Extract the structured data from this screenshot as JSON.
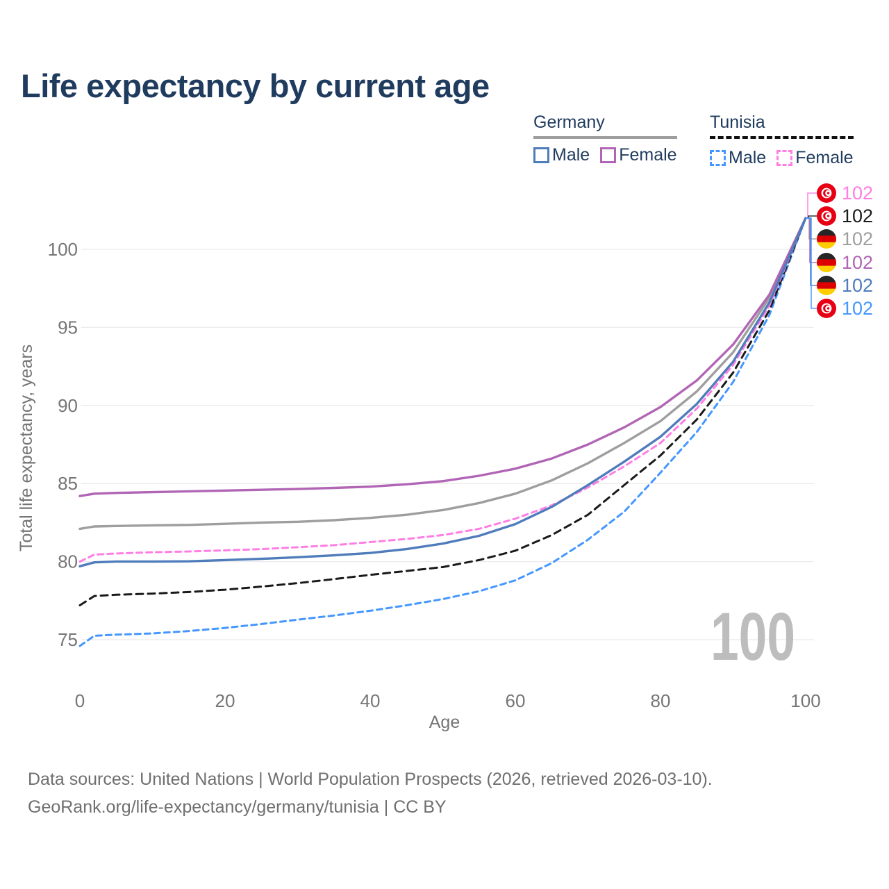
{
  "title": "Life expectancy by current age",
  "watermark_age": "100",
  "legend": {
    "germany": {
      "label": "Germany",
      "male": "Male",
      "female": "Female"
    },
    "tunisia": {
      "label": "Tunisia",
      "male": "Male",
      "female": "Female"
    }
  },
  "footer": {
    "line1": "Data sources: United Nations | World Population Prospects (2026, retrieved 2026-03-10).",
    "line2": "GeoRank.org/life-expectancy/germany/tunisia | CC BY"
  },
  "colors": {
    "title_navy": "#1f3b5e",
    "axis_gray": "#757575",
    "grid_gray": "#ebebeb",
    "watermark_gray": "#bdbdbd",
    "germany_male": "#4f7cbb",
    "germany_female": "#b165b5",
    "germany_all": "#9e9e9e",
    "tunisia_male": "#4597ff",
    "tunisia_female": "#ff7de4",
    "tunisia_all": "#1a1a1a"
  },
  "chart_data": {
    "type": "line",
    "title": "Life expectancy by current age",
    "xlabel": "Age",
    "ylabel": "Total life expectancy, years",
    "xlim": [
      0,
      100
    ],
    "ylim": [
      74,
      103
    ],
    "xticks": [
      0,
      20,
      40,
      60,
      80,
      100
    ],
    "yticks": [
      75,
      80,
      85,
      90,
      95,
      100
    ],
    "grid": "horizontal",
    "legend_position": "top-right",
    "x": [
      0,
      2,
      5,
      10,
      15,
      20,
      25,
      30,
      35,
      40,
      45,
      50,
      55,
      60,
      65,
      70,
      75,
      80,
      85,
      90,
      95,
      100
    ],
    "series": [
      {
        "name": "Germany",
        "sex": "Both",
        "color": "#9e9e9e",
        "dash": "solid",
        "values": [
          82.1,
          82.25,
          82.28,
          82.32,
          82.35,
          82.42,
          82.5,
          82.55,
          82.65,
          82.8,
          83.0,
          83.3,
          83.75,
          84.35,
          85.2,
          86.3,
          87.6,
          89.0,
          90.9,
          93.4,
          96.9,
          102
        ]
      },
      {
        "name": "Germany Female",
        "sex": "Female",
        "color": "#b165b5",
        "dash": "solid",
        "values": [
          84.2,
          84.35,
          84.4,
          84.45,
          84.5,
          84.55,
          84.6,
          84.65,
          84.72,
          84.8,
          84.95,
          85.15,
          85.5,
          85.95,
          86.6,
          87.5,
          88.6,
          89.9,
          91.6,
          93.9,
          97.1,
          102
        ]
      },
      {
        "name": "Tunisia Male",
        "sex": "Male",
        "color": "#4597ff",
        "dash": "dashed",
        "values": [
          74.6,
          75.25,
          75.32,
          75.4,
          75.55,
          75.75,
          76.0,
          76.28,
          76.55,
          76.85,
          77.2,
          77.6,
          78.1,
          78.8,
          79.9,
          81.4,
          83.2,
          85.7,
          88.3,
          91.5,
          95.8,
          102
        ]
      },
      {
        "name": "Tunisia",
        "sex": "Both",
        "color": "#1a1a1a",
        "dash": "dashed",
        "values": [
          77.2,
          77.8,
          77.88,
          77.95,
          78.05,
          78.2,
          78.4,
          78.62,
          78.88,
          79.15,
          79.4,
          79.65,
          80.1,
          80.7,
          81.7,
          83.0,
          84.9,
          86.8,
          89.1,
          92.1,
          96.1,
          102
        ]
      },
      {
        "name": "Tunisia Female",
        "sex": "Female",
        "color": "#ff7de4",
        "dash": "dashed",
        "values": [
          80.0,
          80.45,
          80.52,
          80.6,
          80.65,
          80.72,
          80.8,
          80.92,
          81.05,
          81.25,
          81.45,
          81.7,
          82.1,
          82.75,
          83.6,
          84.75,
          86.1,
          87.6,
          89.8,
          92.6,
          96.4,
          102
        ]
      },
      {
        "name": "Germany Male",
        "sex": "Male",
        "color": "#4f7cbb",
        "dash": "solid",
        "values": [
          79.7,
          79.95,
          80.0,
          80.0,
          80.02,
          80.1,
          80.18,
          80.28,
          80.4,
          80.55,
          80.8,
          81.15,
          81.65,
          82.4,
          83.5,
          84.9,
          86.4,
          88.0,
          90.1,
          92.8,
          96.6,
          102
        ]
      }
    ],
    "end_labels": [
      {
        "series": "Tunisia Female",
        "flag": "tunisia",
        "text": "102",
        "color": "#ff7de4"
      },
      {
        "series": "Tunisia",
        "flag": "tunisia",
        "text": "102",
        "color": "#1a1a1a"
      },
      {
        "series": "Germany",
        "flag": "germany",
        "text": "102",
        "color": "#9e9e9e"
      },
      {
        "series": "Germany Female",
        "flag": "germany",
        "text": "102",
        "color": "#b165b5"
      },
      {
        "series": "Germany Male",
        "flag": "germany",
        "text": "102",
        "color": "#4f7cbb"
      },
      {
        "series": "Tunisia Male",
        "flag": "tunisia",
        "text": "102",
        "color": "#4597ff"
      }
    ],
    "watermark": "100"
  }
}
